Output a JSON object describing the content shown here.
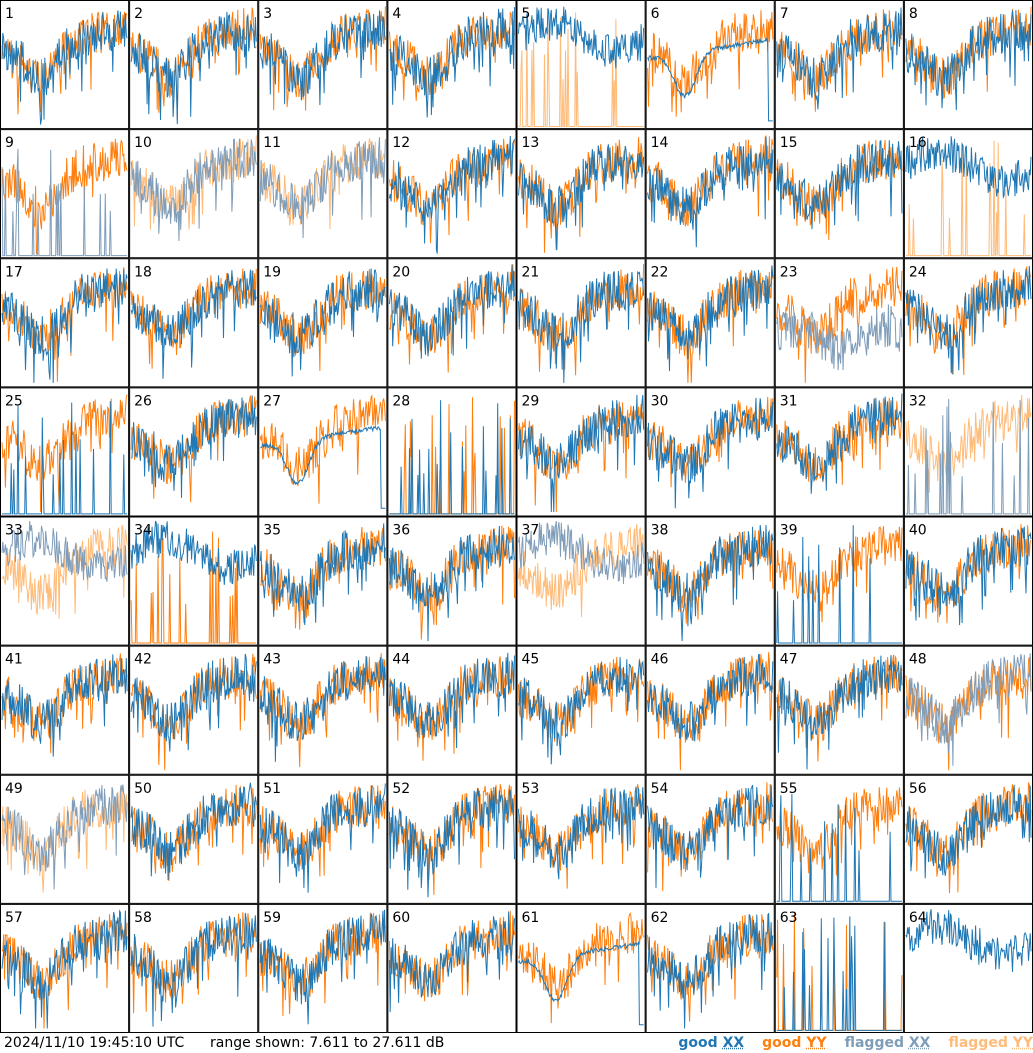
{
  "footer": {
    "timestamp": "2024/11/10 19:45:10 UTC",
    "range_text": "range shown: 7.611 to 27.611 dB"
  },
  "legend": {
    "good_xx_word": "good",
    "good_xx_pol": "XX",
    "good_yy_word": "good",
    "good_yy_pol": "YY",
    "flag_xx_word": "flagged",
    "flag_xx_pol": "XX",
    "flag_yy_word": "flagged",
    "flag_yy_pol": "YY"
  },
  "colors": {
    "good_xx": "#1f77b4",
    "good_yy": "#ff7f0e",
    "flagged_xx": "#7f9db9",
    "flagged_yy": "#ffbb78"
  },
  "chart_data": {
    "type": "line",
    "ylim": [
      7.611,
      27.611
    ],
    "y_unit": "dB",
    "grid": {
      "rows": 8,
      "cols": 8
    },
    "panels": [
      {
        "label": "1",
        "xx": "good",
        "yy": "good",
        "xx_mode": "normal",
        "yy_mode": "normal"
      },
      {
        "label": "2",
        "xx": "good",
        "yy": "good",
        "xx_mode": "normal",
        "yy_mode": "normal"
      },
      {
        "label": "3",
        "xx": "good",
        "yy": "good",
        "xx_mode": "normal",
        "yy_mode": "normal"
      },
      {
        "label": "4",
        "xx": "good",
        "yy": "good",
        "xx_mode": "normal",
        "yy_mode": "normal"
      },
      {
        "label": "5",
        "xx": "good",
        "yy": "flagged",
        "xx_mode": "high",
        "yy_mode": "spikes"
      },
      {
        "label": "6",
        "xx": "good",
        "yy": "good",
        "xx_mode": "dip",
        "yy_mode": "normal"
      },
      {
        "label": "7",
        "xx": "good",
        "yy": "good",
        "xx_mode": "normal",
        "yy_mode": "normal"
      },
      {
        "label": "8",
        "xx": "good",
        "yy": "good",
        "xx_mode": "normal",
        "yy_mode": "normal"
      },
      {
        "label": "9",
        "xx": "flagged",
        "yy": "good",
        "xx_mode": "spikes",
        "yy_mode": "normal"
      },
      {
        "label": "10",
        "xx": "flagged",
        "yy": "flagged",
        "xx_mode": "normal",
        "yy_mode": "normal"
      },
      {
        "label": "11",
        "xx": "flagged",
        "yy": "flagged",
        "xx_mode": "normal",
        "yy_mode": "normal"
      },
      {
        "label": "12",
        "xx": "good",
        "yy": "good",
        "xx_mode": "normal",
        "yy_mode": "normal"
      },
      {
        "label": "13",
        "xx": "good",
        "yy": "good",
        "xx_mode": "normal",
        "yy_mode": "normal"
      },
      {
        "label": "14",
        "xx": "good",
        "yy": "good",
        "xx_mode": "normal",
        "yy_mode": "normal"
      },
      {
        "label": "15",
        "xx": "good",
        "yy": "good",
        "xx_mode": "normal",
        "yy_mode": "normal"
      },
      {
        "label": "16",
        "xx": "good",
        "yy": "flagged",
        "xx_mode": "high",
        "yy_mode": "spikes"
      },
      {
        "label": "17",
        "xx": "good",
        "yy": "good",
        "xx_mode": "normal",
        "yy_mode": "normal"
      },
      {
        "label": "18",
        "xx": "good",
        "yy": "good",
        "xx_mode": "normal",
        "yy_mode": "normal"
      },
      {
        "label": "19",
        "xx": "good",
        "yy": "good",
        "xx_mode": "normal",
        "yy_mode": "normal"
      },
      {
        "label": "20",
        "xx": "good",
        "yy": "good",
        "xx_mode": "normal",
        "yy_mode": "normal"
      },
      {
        "label": "21",
        "xx": "good",
        "yy": "good",
        "xx_mode": "normal",
        "yy_mode": "normal"
      },
      {
        "label": "22",
        "xx": "good",
        "yy": "good",
        "xx_mode": "normal",
        "yy_mode": "normal"
      },
      {
        "label": "23",
        "xx": "flagged",
        "yy": "good",
        "xx_mode": "noisy",
        "yy_mode": "normal"
      },
      {
        "label": "24",
        "xx": "good",
        "yy": "good",
        "xx_mode": "normal",
        "yy_mode": "normal"
      },
      {
        "label": "25",
        "xx": "good",
        "yy": "good",
        "xx_mode": "spikes",
        "yy_mode": "normal"
      },
      {
        "label": "26",
        "xx": "good",
        "yy": "good",
        "xx_mode": "normal",
        "yy_mode": "normal"
      },
      {
        "label": "27",
        "xx": "good",
        "yy": "good",
        "xx_mode": "dip",
        "yy_mode": "normal"
      },
      {
        "label": "28",
        "xx": "good",
        "yy": "good",
        "xx_mode": "spikes",
        "yy_mode": "spikes"
      },
      {
        "label": "29",
        "xx": "good",
        "yy": "good",
        "xx_mode": "normal",
        "yy_mode": "normal"
      },
      {
        "label": "30",
        "xx": "good",
        "yy": "good",
        "xx_mode": "normal",
        "yy_mode": "normal"
      },
      {
        "label": "31",
        "xx": "good",
        "yy": "good",
        "xx_mode": "normal",
        "yy_mode": "normal"
      },
      {
        "label": "32",
        "xx": "flagged",
        "yy": "flagged",
        "xx_mode": "spikes",
        "yy_mode": "normal"
      },
      {
        "label": "33",
        "xx": "flagged",
        "yy": "flagged",
        "xx_mode": "high",
        "yy_mode": "normal"
      },
      {
        "label": "34",
        "xx": "good",
        "yy": "good",
        "xx_mode": "high",
        "yy_mode": "spikes"
      },
      {
        "label": "35",
        "xx": "good",
        "yy": "good",
        "xx_mode": "normal",
        "yy_mode": "normal"
      },
      {
        "label": "36",
        "xx": "good",
        "yy": "good",
        "xx_mode": "normal",
        "yy_mode": "normal"
      },
      {
        "label": "37",
        "xx": "flagged",
        "yy": "flagged",
        "xx_mode": "high",
        "yy_mode": "normal"
      },
      {
        "label": "38",
        "xx": "good",
        "yy": "good",
        "xx_mode": "normal",
        "yy_mode": "normal"
      },
      {
        "label": "39",
        "xx": "good",
        "yy": "good",
        "xx_mode": "spikes",
        "yy_mode": "normal"
      },
      {
        "label": "40",
        "xx": "good",
        "yy": "good",
        "xx_mode": "normal",
        "yy_mode": "normal"
      },
      {
        "label": "41",
        "xx": "good",
        "yy": "good",
        "xx_mode": "normal",
        "yy_mode": "normal"
      },
      {
        "label": "42",
        "xx": "good",
        "yy": "good",
        "xx_mode": "normal",
        "yy_mode": "normal"
      },
      {
        "label": "43",
        "xx": "good",
        "yy": "good",
        "xx_mode": "normal",
        "yy_mode": "normal"
      },
      {
        "label": "44",
        "xx": "good",
        "yy": "good",
        "xx_mode": "normal",
        "yy_mode": "normal"
      },
      {
        "label": "45",
        "xx": "good",
        "yy": "good",
        "xx_mode": "normal",
        "yy_mode": "normal"
      },
      {
        "label": "46",
        "xx": "good",
        "yy": "good",
        "xx_mode": "normal",
        "yy_mode": "normal"
      },
      {
        "label": "47",
        "xx": "good",
        "yy": "good",
        "xx_mode": "normal",
        "yy_mode": "normal"
      },
      {
        "label": "48",
        "xx": "flagged",
        "yy": "good",
        "xx_mode": "normal",
        "yy_mode": "normal"
      },
      {
        "label": "49",
        "xx": "flagged",
        "yy": "flagged",
        "xx_mode": "normal",
        "yy_mode": "normal"
      },
      {
        "label": "50",
        "xx": "good",
        "yy": "good",
        "xx_mode": "normal",
        "yy_mode": "normal"
      },
      {
        "label": "51",
        "xx": "good",
        "yy": "good",
        "xx_mode": "normal",
        "yy_mode": "normal"
      },
      {
        "label": "52",
        "xx": "good",
        "yy": "good",
        "xx_mode": "normal",
        "yy_mode": "normal"
      },
      {
        "label": "53",
        "xx": "good",
        "yy": "good",
        "xx_mode": "normal",
        "yy_mode": "normal"
      },
      {
        "label": "54",
        "xx": "good",
        "yy": "good",
        "xx_mode": "normal",
        "yy_mode": "normal"
      },
      {
        "label": "55",
        "xx": "good",
        "yy": "good",
        "xx_mode": "spikes",
        "yy_mode": "normal"
      },
      {
        "label": "56",
        "xx": "good",
        "yy": "good",
        "xx_mode": "normal",
        "yy_mode": "normal"
      },
      {
        "label": "57",
        "xx": "good",
        "yy": "good",
        "xx_mode": "normal",
        "yy_mode": "normal"
      },
      {
        "label": "58",
        "xx": "good",
        "yy": "good",
        "xx_mode": "normal",
        "yy_mode": "normal"
      },
      {
        "label": "59",
        "xx": "good",
        "yy": "good",
        "xx_mode": "normal",
        "yy_mode": "normal"
      },
      {
        "label": "60",
        "xx": "good",
        "yy": "good",
        "xx_mode": "normal",
        "yy_mode": "normal"
      },
      {
        "label": "61",
        "xx": "good",
        "yy": "good",
        "xx_mode": "dip",
        "yy_mode": "normal"
      },
      {
        "label": "62",
        "xx": "good",
        "yy": "good",
        "xx_mode": "normal",
        "yy_mode": "normal"
      },
      {
        "label": "63",
        "xx": "good",
        "yy": "good",
        "xx_mode": "spikes",
        "yy_mode": "spikes"
      },
      {
        "label": "64",
        "xx": "good",
        "yy": "good",
        "xx_mode": "high",
        "yy_mode": "none"
      }
    ]
  }
}
